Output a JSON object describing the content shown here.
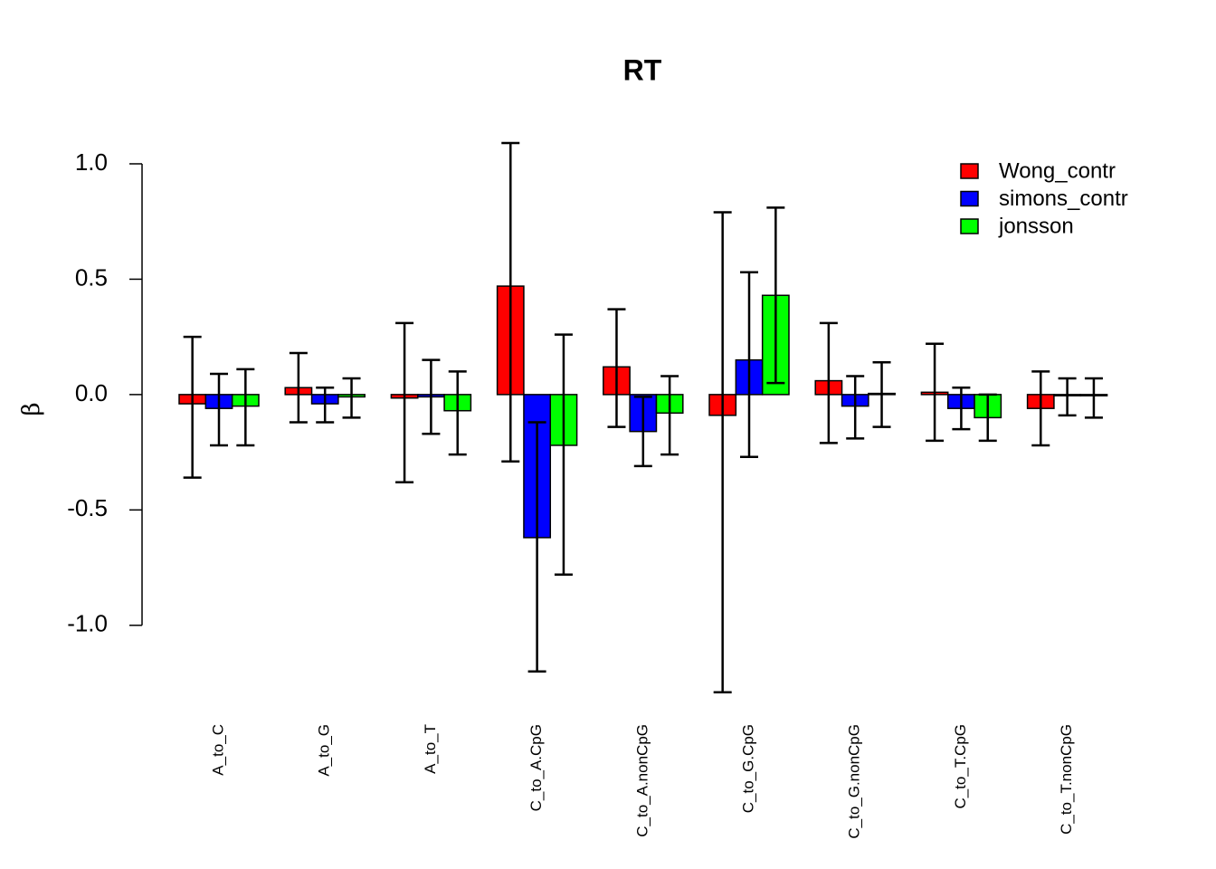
{
  "chart_data": {
    "type": "bar",
    "title": "RT",
    "y_label": "β",
    "categories": [
      "A_to_C",
      "A_to_G",
      "A_to_T",
      "C_to_A.CpG",
      "C_to_A.nonCpG",
      "C_to_G.CpG",
      "C_to_G.nonCpG",
      "C_to_T.CpG",
      "C_to_T.nonCpG"
    ],
    "series": [
      {
        "name": "Wong_contr",
        "color": "#ff0000",
        "values": [
          -0.04,
          0.03,
          -0.015,
          0.47,
          0.12,
          -0.09,
          0.06,
          0.01,
          -0.06
        ],
        "lower": [
          -0.36,
          -0.12,
          -0.38,
          -0.29,
          -0.14,
          -1.29,
          -0.21,
          -0.2,
          -0.22
        ],
        "upper": [
          0.25,
          0.18,
          0.31,
          1.09,
          0.37,
          0.79,
          0.31,
          0.22,
          0.1
        ]
      },
      {
        "name": "simons_contr",
        "color": "#0000ff",
        "values": [
          -0.06,
          -0.04,
          -0.01,
          -0.62,
          -0.16,
          0.15,
          -0.05,
          -0.06,
          -0.005
        ],
        "lower": [
          -0.22,
          -0.12,
          -0.17,
          -1.2,
          -0.31,
          -0.27,
          -0.19,
          -0.15,
          -0.09
        ],
        "upper": [
          0.09,
          0.03,
          0.15,
          -0.12,
          -0.01,
          0.53,
          0.08,
          0.03,
          0.07
        ]
      },
      {
        "name": "jonsson",
        "color": "#00ff00",
        "values": [
          -0.05,
          -0.01,
          -0.07,
          -0.22,
          -0.08,
          0.43,
          0.005,
          -0.1,
          -0.005
        ],
        "lower": [
          -0.22,
          -0.1,
          -0.26,
          -0.78,
          -0.26,
          0.05,
          -0.14,
          -0.2,
          -0.1
        ],
        "upper": [
          0.11,
          0.07,
          0.1,
          0.26,
          0.08,
          0.81,
          0.14,
          0.0,
          0.07
        ]
      }
    ],
    "ylim": [
      -1.35,
      1.2
    ],
    "yticks": [
      {
        "value": -1,
        "label": "-1.0"
      },
      {
        "value": -0.5,
        "label": "-0.5"
      },
      {
        "value": 0,
        "label": "0.0"
      },
      {
        "value": 0.5,
        "label": "0.5"
      },
      {
        "value": 1,
        "label": "1.0"
      }
    ],
    "legend": "top-right"
  }
}
